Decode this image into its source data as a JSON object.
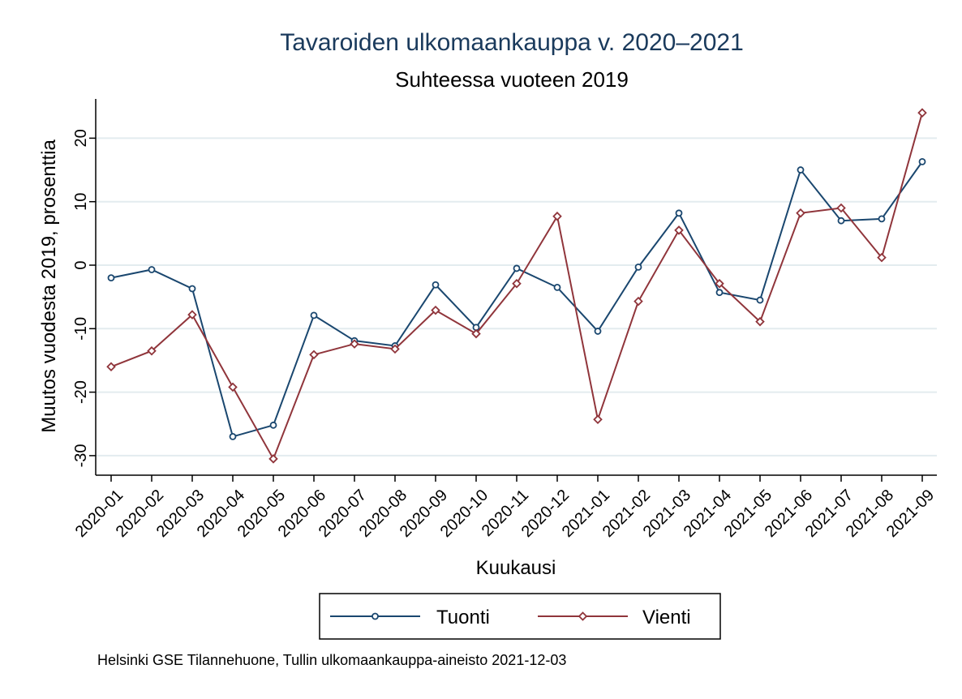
{
  "chart_data": {
    "type": "line",
    "title": "Tavaroiden ulkomaankauppa v. 2020–2021",
    "subtitle": "Suhteessa vuoteen 2019",
    "xlabel": "Kuukausi",
    "ylabel": "Muutos vuodesta 2019, prosenttia",
    "categories": [
      "2020-01",
      "2020-02",
      "2020-03",
      "2020-04",
      "2020-05",
      "2020-06",
      "2020-07",
      "2020-08",
      "2020-09",
      "2020-10",
      "2020-11",
      "2020-12",
      "2021-01",
      "2021-02",
      "2021-03",
      "2021-04",
      "2021-05",
      "2021-06",
      "2021-07",
      "2021-08",
      "2021-09"
    ],
    "yticks": [
      -30,
      -20,
      -10,
      0,
      10,
      20
    ],
    "ylim": [
      -32.5,
      26
    ],
    "grid": true,
    "legend_position": "bottom",
    "series": [
      {
        "name": "Tuonti",
        "color": "#1a476f",
        "marker": "circle",
        "values": [
          -2.0,
          -0.7,
          -3.7,
          -27.0,
          -25.2,
          -7.9,
          -11.9,
          -12.7,
          -3.1,
          -9.8,
          -0.5,
          -3.5,
          -10.4,
          -0.3,
          8.2,
          -4.3,
          -5.5,
          15.0,
          7.0,
          7.3,
          16.3
        ]
      },
      {
        "name": "Vienti",
        "color": "#90353b",
        "marker": "diamond",
        "values": [
          -16.0,
          -13.5,
          -7.8,
          -19.2,
          -30.5,
          -14.1,
          -12.4,
          -13.2,
          -7.1,
          -10.8,
          -2.9,
          7.7,
          -24.3,
          -5.7,
          5.5,
          -2.9,
          -8.9,
          8.2,
          9.0,
          1.2,
          24.0
        ]
      }
    ]
  },
  "footnote": "Helsinki GSE Tilannehuone, Tullin ulkomaankauppa-aineisto 2021-12-03"
}
